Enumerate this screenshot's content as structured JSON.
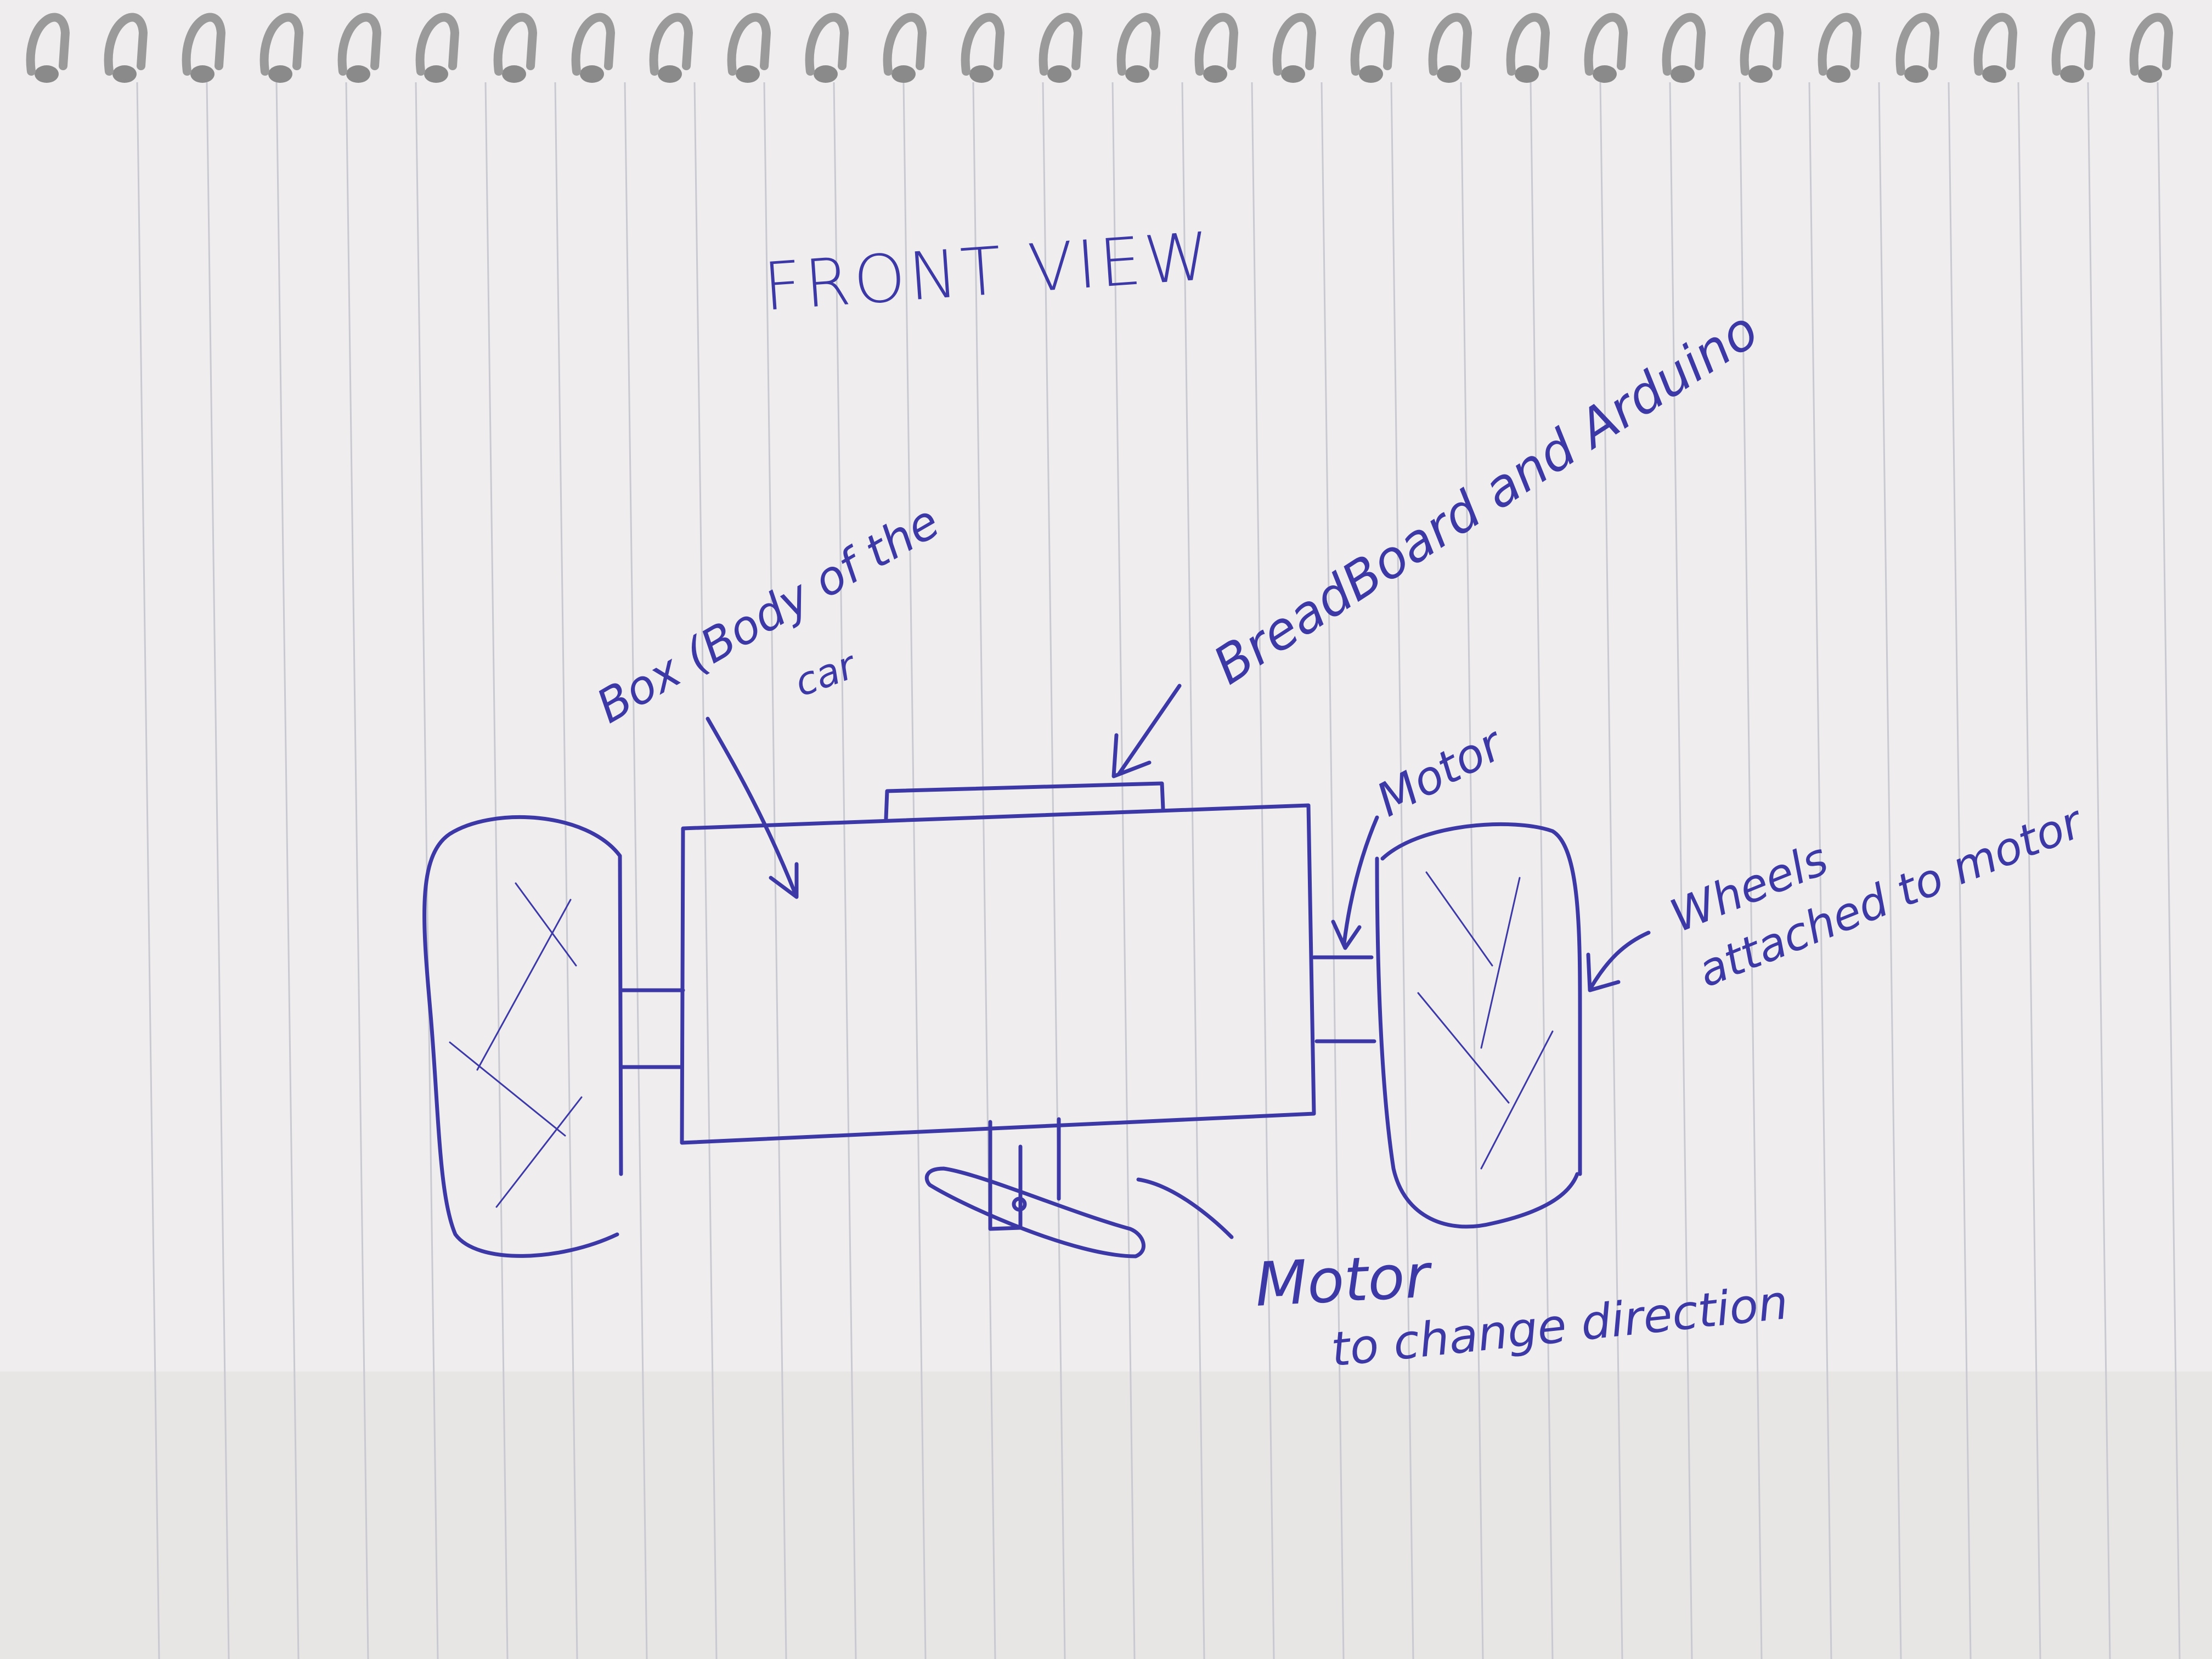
{
  "page": {
    "paper_color": "#efedee",
    "rule_color": "#c9c9d2",
    "ink_color": "#3c39a6",
    "ring_color": "#9a9a9a"
  },
  "labels": {
    "title": "FRONT VIEW",
    "box_body_line1": "Box (Body of the",
    "box_body_line2": "car",
    "breadboard": "BreadBoard and Arduino",
    "motor_top": "Motor",
    "wheels_line1": "Wheels",
    "wheels_line2": "attached to motor",
    "motor_direction_line1": "Motor",
    "motor_direction_line2": "to change direction"
  }
}
